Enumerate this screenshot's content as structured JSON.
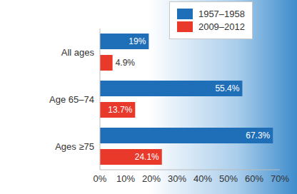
{
  "chart_data": {
    "type": "bar",
    "orientation": "horizontal",
    "categories": [
      "All ages",
      "Age 65–74",
      "Ages ≥75"
    ],
    "series": [
      {
        "name": "1957–1958",
        "color": "#1f6fb8",
        "values": [
          19,
          55.4,
          67.3
        ],
        "value_labels": [
          "19%",
          "55.4%",
          "67.3%"
        ]
      },
      {
        "name": "2009–2012",
        "color": "#e8392b",
        "values": [
          4.9,
          13.7,
          24.1
        ],
        "value_labels": [
          "4.9%",
          "13.7%",
          "24.1%"
        ]
      }
    ],
    "xlim": [
      0,
      70
    ],
    "xticks": [
      {
        "value": 0,
        "label": "0%"
      },
      {
        "value": 10,
        "label": "10%"
      },
      {
        "value": 20,
        "label": "20%"
      },
      {
        "value": 30,
        "label": "30%"
      },
      {
        "value": 40,
        "label": "40%"
      },
      {
        "value": 50,
        "label": "50%"
      },
      {
        "value": 60,
        "label": "60%"
      },
      {
        "value": 70,
        "label": "70%"
      }
    ],
    "grid": false,
    "legend": "upper right",
    "data_labels": true
  }
}
